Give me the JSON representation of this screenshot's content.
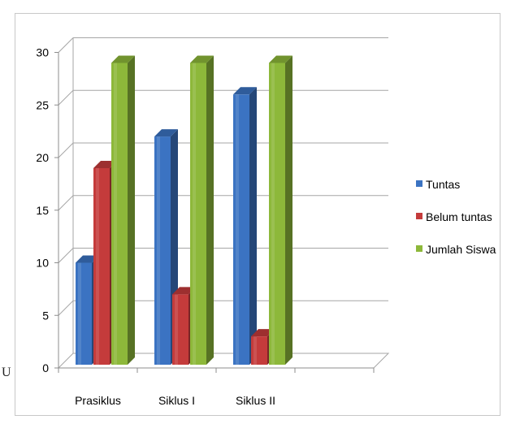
{
  "stray_char": "U",
  "chart_data": {
    "type": "bar",
    "categories": [
      "Prasiklus",
      "Siklus I",
      "Siklus II"
    ],
    "series": [
      {
        "name": "Tuntas",
        "values": [
          10,
          22,
          26
        ],
        "color": "#3b73c2"
      },
      {
        "name": "Belum tuntas",
        "values": [
          19,
          7,
          3
        ],
        "color": "#c43b3b"
      },
      {
        "name": "Jumlah Siswa",
        "values": [
          29,
          29,
          29
        ],
        "color": "#8db83a"
      }
    ],
    "y_ticks": [
      "0",
      "5",
      "10",
      "15",
      "20",
      "25",
      "30"
    ],
    "ylim": [
      0,
      30
    ],
    "grid": true,
    "legend_position": "right",
    "style": "3d-column"
  }
}
